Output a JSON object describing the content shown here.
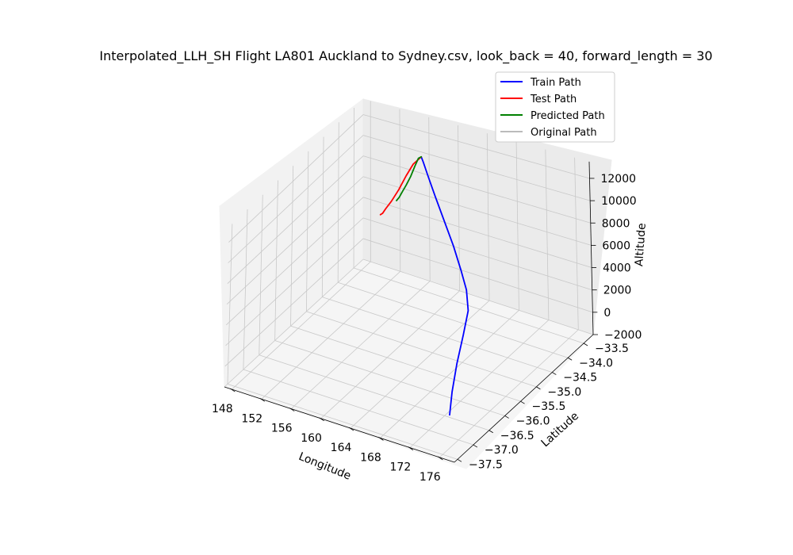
{
  "chart_data": {
    "type": "line3d",
    "title": "Interpolated_LLH_SH Flight LA801 Auckland to Sydney.csv, look_back = 40, forward_length = 30",
    "xlabel": "Longitude",
    "ylabel": "Latitude",
    "zlabel": "Altitude",
    "xticks": [
      "148",
      "152",
      "156",
      "160",
      "164",
      "168",
      "172",
      "176"
    ],
    "xtick_values": [
      148,
      152,
      156,
      160,
      164,
      168,
      172,
      176
    ],
    "yticks": [
      "−33.5",
      "−34.0",
      "−34.5",
      "−35.0",
      "−35.5",
      "−36.0",
      "−36.5",
      "−37.0",
      "−37.5"
    ],
    "ytick_values": [
      -33.5,
      -34.0,
      -34.5,
      -35.0,
      -35.5,
      -36.0,
      -36.5,
      -37.0,
      -37.5
    ],
    "zticks": [
      "−2000",
      "0",
      "2000",
      "4000",
      "6000",
      "8000",
      "10000",
      "12000"
    ],
    "ztick_values": [
      -2000,
      0,
      2000,
      4000,
      6000,
      8000,
      10000,
      12000
    ],
    "xlim": [
      147,
      178
    ],
    "ylim": [
      -37.6,
      -33.2
    ],
    "zlim": [
      -2000,
      13500
    ],
    "legend_position": "top-right",
    "grid": true,
    "series": [
      {
        "name": "Train Path",
        "color": "#0000ff",
        "x": [
          174.8,
          174.7,
          174.5,
          174.1,
          173.5,
          172.0,
          170.0,
          167.5,
          165.0,
          162.5,
          160.5,
          159.0,
          158.3
        ],
        "y": [
          -37.0,
          -36.9,
          -36.7,
          -36.4,
          -36.1,
          -35.8,
          -35.5,
          -35.15,
          -34.85,
          -34.55,
          -34.3,
          -34.1,
          -34.0
        ],
        "z": [
          0,
          1800,
          3800,
          5500,
          6800,
          7600,
          8200,
          9000,
          10000,
          11000,
          11800,
          12300,
          12400
        ]
      },
      {
        "name": "Test Path",
        "color": "#ff0000",
        "x": [
          158.3,
          157.2,
          156.0,
          155.0,
          154.0,
          153.2,
          152.8,
          152.5
        ],
        "y": [
          -34.0,
          -34.0,
          -33.95,
          -33.95,
          -33.95,
          -33.95,
          -33.95,
          -33.95
        ],
        "z": [
          12400,
          11500,
          10000,
          8500,
          7200,
          6300,
          5800,
          5600
        ]
      },
      {
        "name": "Predicted Path",
        "color": "#008000",
        "x": [
          158.3,
          157.7,
          157.0,
          156.3,
          155.6,
          155.0,
          154.5,
          154.1
        ],
        "y": [
          -34.0,
          -33.95,
          -33.9,
          -33.87,
          -33.85,
          -33.83,
          -33.82,
          -33.81
        ],
        "z": [
          12400,
          12000,
          11000,
          9800,
          8800,
          8000,
          7300,
          6900
        ]
      },
      {
        "name": "Original Path",
        "color": "#bbbbbb",
        "x": [],
        "y": [],
        "z": []
      }
    ]
  }
}
